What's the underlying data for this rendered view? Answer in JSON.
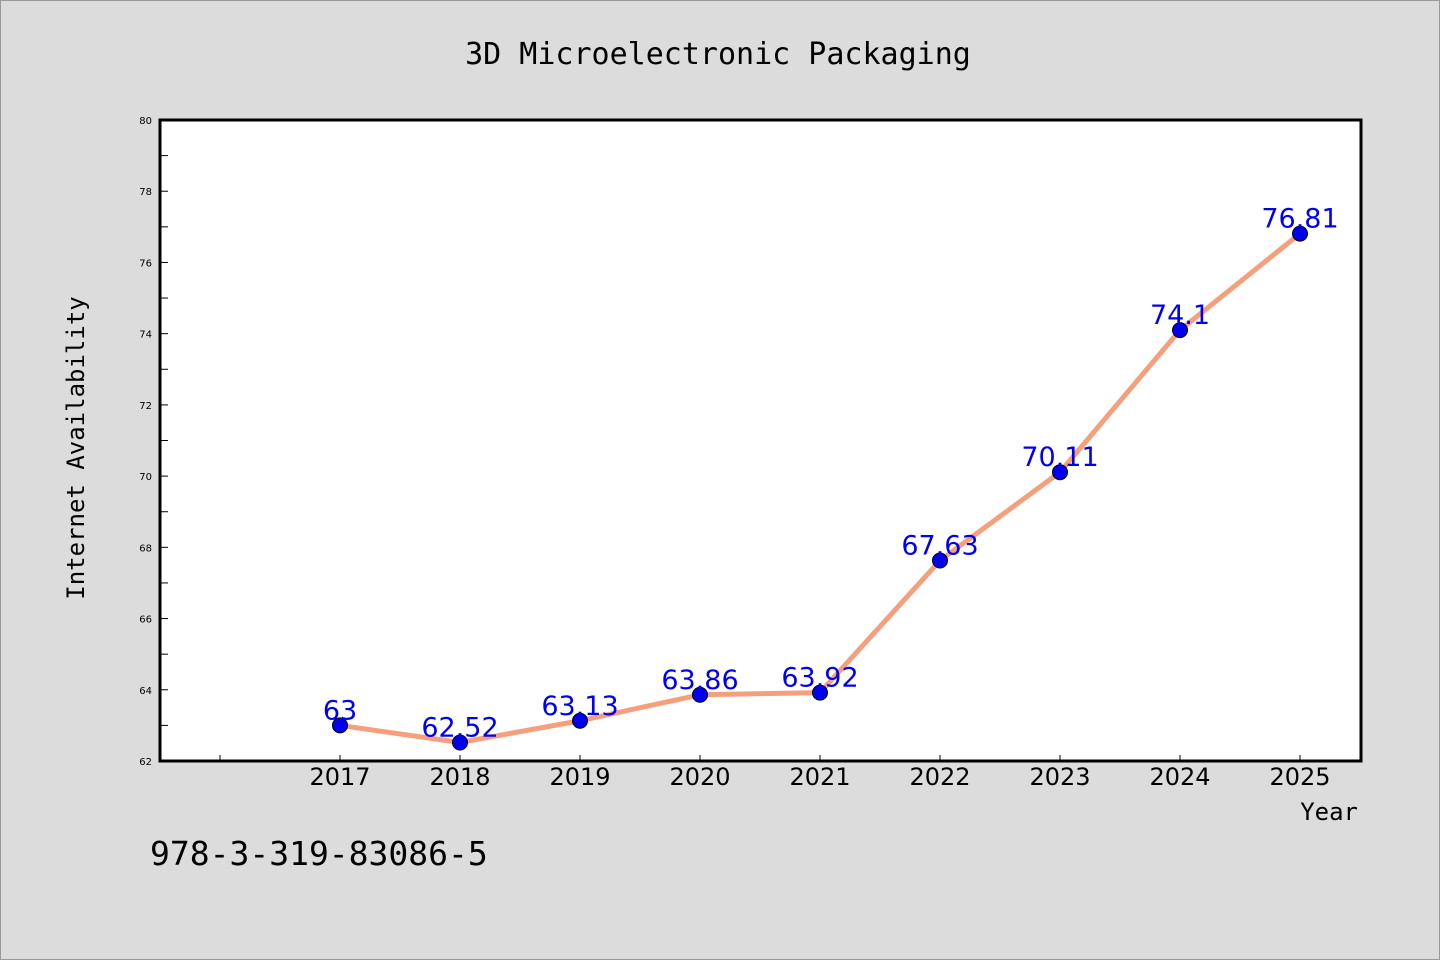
{
  "chart_data": {
    "type": "line",
    "title": "3D Microelectronic Packaging",
    "xlabel": "Year",
    "ylabel": "Internet Availability",
    "categories": [
      "2017",
      "2018",
      "2019",
      "2020",
      "2021",
      "2022",
      "2023",
      "2024",
      "2025"
    ],
    "series": [
      {
        "values": [
          63,
          62.52,
          63.13,
          63.86,
          63.92,
          67.63,
          70.11,
          74.1,
          76.81
        ],
        "line_color": "#f4a07c",
        "marker_color": "#0000ee",
        "label_color": "#0000ee"
      }
    ],
    "ylim": [
      62,
      80
    ],
    "yticks": [
      62,
      64,
      66,
      68,
      70,
      72,
      74,
      76,
      78,
      80
    ],
    "grid": false,
    "legend": "none",
    "data_labels": true
  },
  "footer_note": "978-3-319-83086-5",
  "colors": {
    "background": "#dcdcdc",
    "plot_area": "#ffffff",
    "axes": "#000000"
  }
}
